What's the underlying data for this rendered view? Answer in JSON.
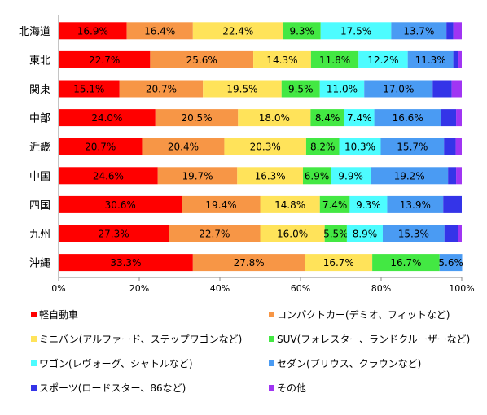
{
  "chart_data": {
    "type": "bar",
    "orientation": "horizontal",
    "stacked": true,
    "percent": true,
    "categories": [
      "北海道",
      "東北",
      "関東",
      "中部",
      "近畿",
      "中国",
      "四国",
      "九州",
      "沖縄"
    ],
    "series": [
      {
        "name": "軽自動車",
        "color": "#ff0000",
        "values": [
          16.9,
          22.7,
          15.1,
          24.0,
          20.7,
          24.6,
          30.6,
          27.3,
          33.3
        ]
      },
      {
        "name": "コンパクトカー(デミオ、フィットなど)",
        "color": "#f79646",
        "values": [
          16.4,
          25.6,
          20.7,
          20.5,
          20.4,
          19.7,
          19.4,
          22.7,
          27.8
        ]
      },
      {
        "name": "ミニバン(アルファード、ステップワゴンなど)",
        "color": "#ffe35a",
        "values": [
          22.4,
          14.3,
          19.5,
          18.0,
          20.3,
          16.3,
          14.8,
          16.0,
          16.7
        ]
      },
      {
        "name": "SUV(フォレスター、ランドクルーザーなど)",
        "color": "#43e843",
        "values": [
          9.3,
          11.8,
          9.5,
          8.4,
          8.2,
          6.9,
          7.4,
          5.5,
          16.7
        ]
      },
      {
        "name": "ワゴン(レヴォーグ、シャトルなど)",
        "color": "#4dfcff",
        "values": [
          17.5,
          12.2,
          11.0,
          7.4,
          10.3,
          9.9,
          9.3,
          8.9,
          0
        ]
      },
      {
        "name": "セダン(プリウス、クラウンなど)",
        "color": "#4a9bf3",
        "values": [
          13.7,
          11.3,
          17.0,
          16.6,
          15.7,
          19.2,
          13.9,
          15.3,
          5.6
        ]
      },
      {
        "name": "スポーツ(ロードスター、86など)",
        "color": "#3434e8",
        "values": [
          1.7,
          1.3,
          4.7,
          3.7,
          2.9,
          2.0,
          4.6,
          3.3,
          0
        ]
      },
      {
        "name": "その他",
        "color": "#a035f3",
        "values": [
          2.1,
          0.8,
          2.5,
          1.4,
          1.5,
          1.4,
          0,
          1.0,
          0
        ]
      }
    ],
    "data_labels": [
      [
        "16.9%",
        "16.4%",
        "22.4%",
        "9.3%",
        "17.5%",
        "13.7%",
        "",
        ""
      ],
      [
        "22.7%",
        "25.6%",
        "14.3%",
        "11.8%",
        "12.2%",
        "11.3%",
        "",
        ""
      ],
      [
        "15.1%",
        "20.7%",
        "19.5%",
        "9.5%",
        "11.0%",
        "17.0%",
        "",
        ""
      ],
      [
        "24.0%",
        "20.5%",
        "18.0%",
        "8.4%",
        "7.4%",
        "16.6%",
        "",
        ""
      ],
      [
        "20.7%",
        "20.4%",
        "20.3%",
        "8.2%",
        "10.3%",
        "15.7%",
        "",
        ""
      ],
      [
        "24.6%",
        "19.7%",
        "16.3%",
        "6.9%",
        "9.9%",
        "19.2%",
        "",
        ""
      ],
      [
        "30.6%",
        "19.4%",
        "14.8%",
        "7.4%",
        "9.3%",
        "13.9%",
        "",
        ""
      ],
      [
        "27.3%",
        "22.7%",
        "16.0%",
        "5.5%",
        "8.9%",
        "15.3%",
        "",
        ""
      ],
      [
        "33.3%",
        "27.8%",
        "16.7%",
        "16.7%",
        "",
        "5.6%",
        "",
        ""
      ]
    ],
    "x_ticks": [
      "0%",
      "20%",
      "40%",
      "60%",
      "80%",
      "100%"
    ],
    "xlim": [
      0,
      100
    ],
    "grid": false,
    "legend_position": "bottom"
  }
}
